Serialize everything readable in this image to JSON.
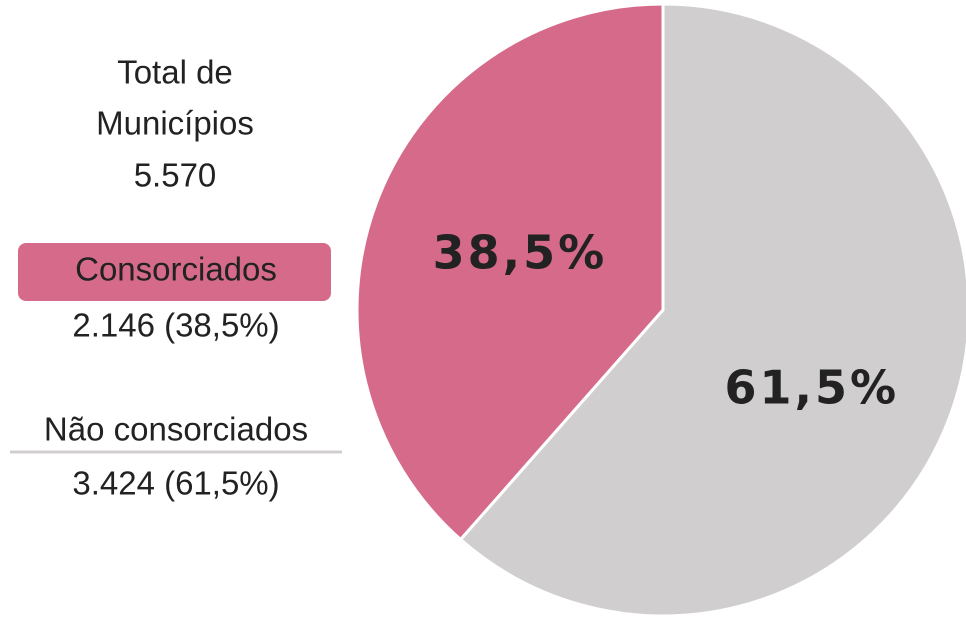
{
  "chart_data": {
    "type": "pie",
    "total_title": [
      "Total de",
      "Municípios"
    ],
    "total_value": "5.570",
    "categories": [
      "Consorciados",
      "Não consorciados"
    ],
    "values": [
      38.5,
      61.5
    ],
    "value_labels": [
      "38,5%",
      "61,5%"
    ],
    "legend_details": [
      "2.146 (38,5%)",
      "3.424 (61,5%)"
    ],
    "colors": [
      "#d66a8a",
      "#d0cecf"
    ]
  }
}
